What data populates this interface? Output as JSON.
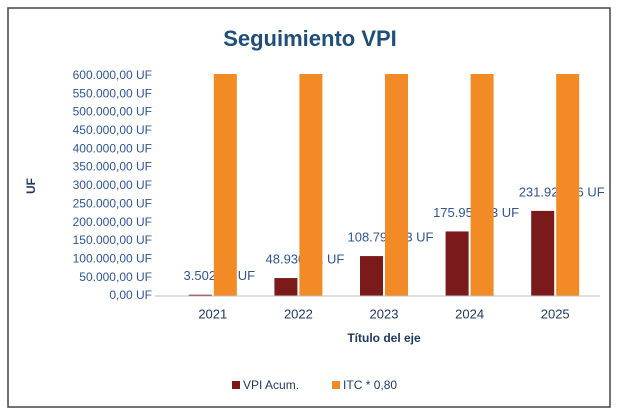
{
  "chart_data": {
    "type": "bar",
    "title": "Seguimiento VPI",
    "y_label": "UF",
    "x_label": "Título del eje",
    "categories": [
      "2021",
      "2022",
      "2023",
      "2024",
      "2025"
    ],
    "series": [
      {
        "name": "VPI Acum.",
        "color": "#7b1a1a",
        "values": [
          3502.19,
          48930.81,
          108792.13,
          175951.03,
          231924.66
        ],
        "value_labels": [
          "3.502,19 UF",
          "48.930,81 UF",
          "108.792,13 UF",
          "175.951,03 UF",
          "231.924,66 UF"
        ]
      },
      {
        "name": "ITC * 0,80",
        "color": "#f28a26",
        "values": [
          605000,
          605000,
          605000,
          605000,
          605000
        ]
      }
    ],
    "ylim": [
      0,
      605000
    ],
    "yticks": [
      {
        "value": 0,
        "label": "0,00 UF"
      },
      {
        "value": 50000,
        "label": "50.000,00 UF"
      },
      {
        "value": 100000,
        "label": "100.000,00 UF"
      },
      {
        "value": 150000,
        "label": "150.000,00 UF"
      },
      {
        "value": 200000,
        "label": "200.000,00 UF"
      },
      {
        "value": 250000,
        "label": "250.000,00 UF"
      },
      {
        "value": 300000,
        "label": "300.000,00 UF"
      },
      {
        "value": 350000,
        "label": "350.000,00 UF"
      },
      {
        "value": 400000,
        "label": "400.000,00 UF"
      },
      {
        "value": 450000,
        "label": "450.000,00 UF"
      },
      {
        "value": 500000,
        "label": "500.000,00 UF"
      },
      {
        "value": 550000,
        "label": "550.000,00 UF"
      },
      {
        "value": 600000,
        "label": "600.000,00 UF"
      }
    ],
    "grid": false,
    "legend": "bottom"
  }
}
